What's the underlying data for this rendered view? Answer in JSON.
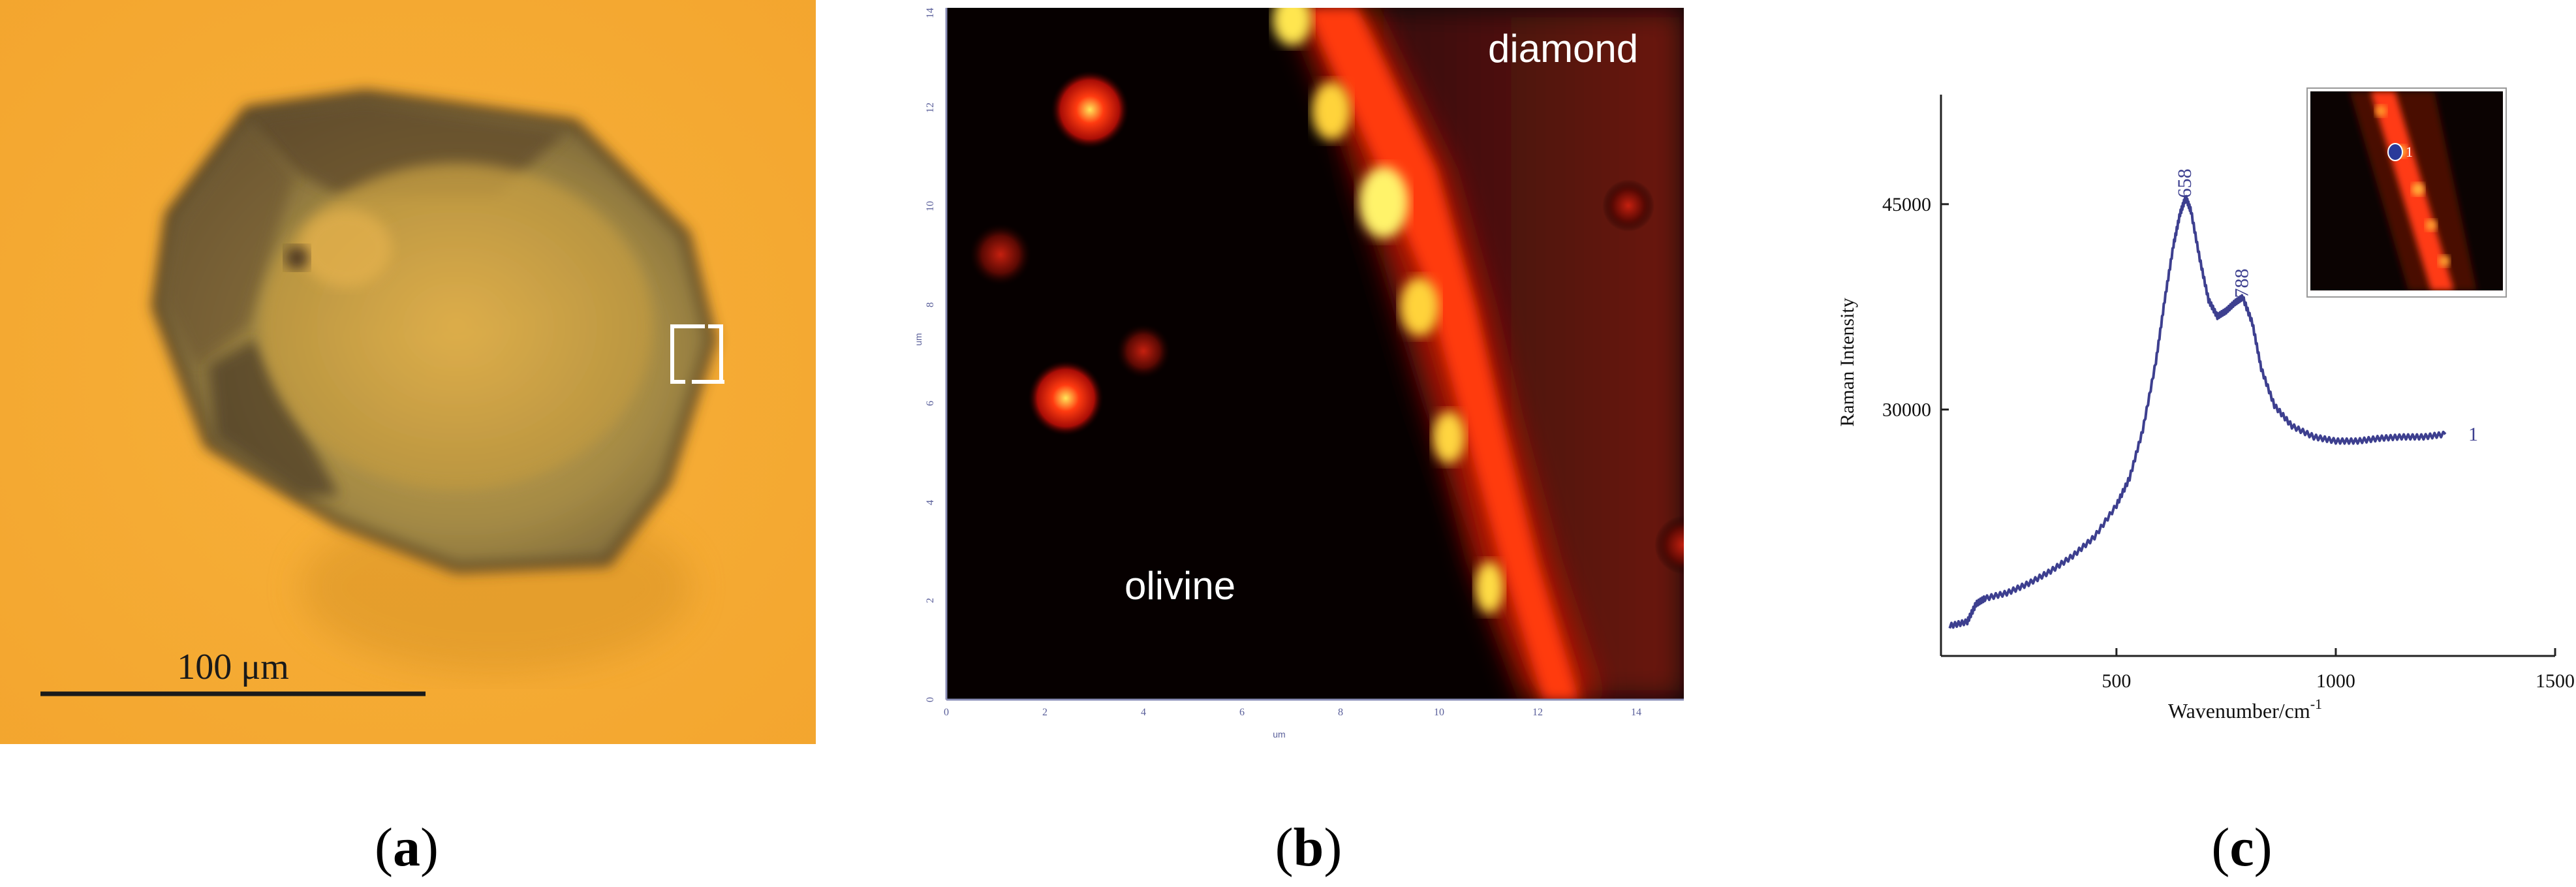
{
  "panel_a": {
    "scale_label": "100 μm",
    "caption": "a"
  },
  "panel_b": {
    "label_diamond": "diamond",
    "label_olivine": "olivine",
    "y_ticks": [
      "0",
      "2",
      "4",
      "6",
      "8",
      "10",
      "12",
      "14"
    ],
    "x_ticks": [
      "0",
      "2",
      "4",
      "6",
      "8",
      "10",
      "12",
      "14"
    ],
    "y_unit": "um",
    "x_unit": "um",
    "caption": "b"
  },
  "panel_c": {
    "caption": "c",
    "inset_point_label": "1",
    "series_label": "1",
    "chart_data": {
      "type": "line",
      "xlabel": "Wavenumber/cm",
      "xlabel_superscript": "-1",
      "ylabel": "Raman Intensity",
      "xlim": [
        100,
        1500
      ],
      "ylim": [
        12000,
        53000
      ],
      "x_ticks": [
        500,
        1000,
        1500
      ],
      "y_ticks": [
        30000,
        45000
      ],
      "peak_labels": [
        {
          "x": 658,
          "y": 45500,
          "text": "658"
        },
        {
          "x": 788,
          "y": 38200,
          "text": "788"
        }
      ],
      "series": [
        {
          "name": "1",
          "x": [
            120,
            160,
            180,
            200,
            250,
            300,
            350,
            400,
            450,
            500,
            530,
            560,
            590,
            610,
            630,
            645,
            658,
            670,
            690,
            710,
            730,
            750,
            770,
            788,
            810,
            830,
            860,
            900,
            950,
            1000,
            1050,
            1100,
            1150,
            1200,
            1250
          ],
          "y": [
            14200,
            14500,
            15800,
            16200,
            16600,
            17300,
            18200,
            19300,
            20700,
            23000,
            25000,
            28500,
            33500,
            38000,
            42000,
            44300,
            45500,
            44500,
            41000,
            38000,
            36800,
            37200,
            37800,
            38200,
            36300,
            33000,
            30300,
            28800,
            28000,
            27700,
            27700,
            27900,
            28000,
            28000,
            28200
          ]
        }
      ]
    }
  }
}
